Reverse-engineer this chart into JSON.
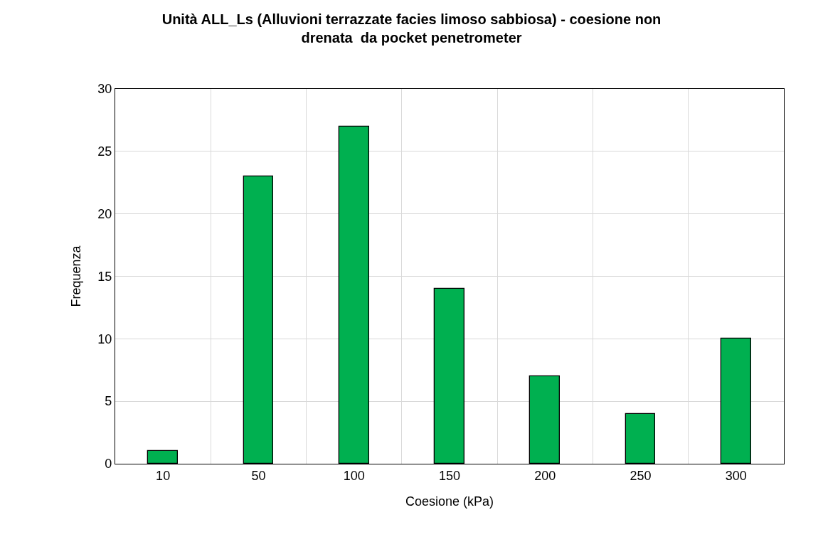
{
  "chart_data": {
    "type": "bar",
    "title": "Unità ALL_Ls (Alluvioni terrazzate facies limoso sabbiosa) - coesione non\ndrenata  da pocket penetrometer",
    "xlabel": "Coesione (kPa)",
    "ylabel": "Frequenza",
    "categories": [
      "10",
      "50",
      "100",
      "150",
      "200",
      "250",
      "300"
    ],
    "values": [
      1,
      23,
      27,
      14,
      7,
      4,
      10
    ],
    "color": "#00b050",
    "ylim": [
      0,
      30
    ],
    "yticks": [
      0,
      5,
      10,
      15,
      20,
      25,
      30
    ],
    "grid": true
  }
}
